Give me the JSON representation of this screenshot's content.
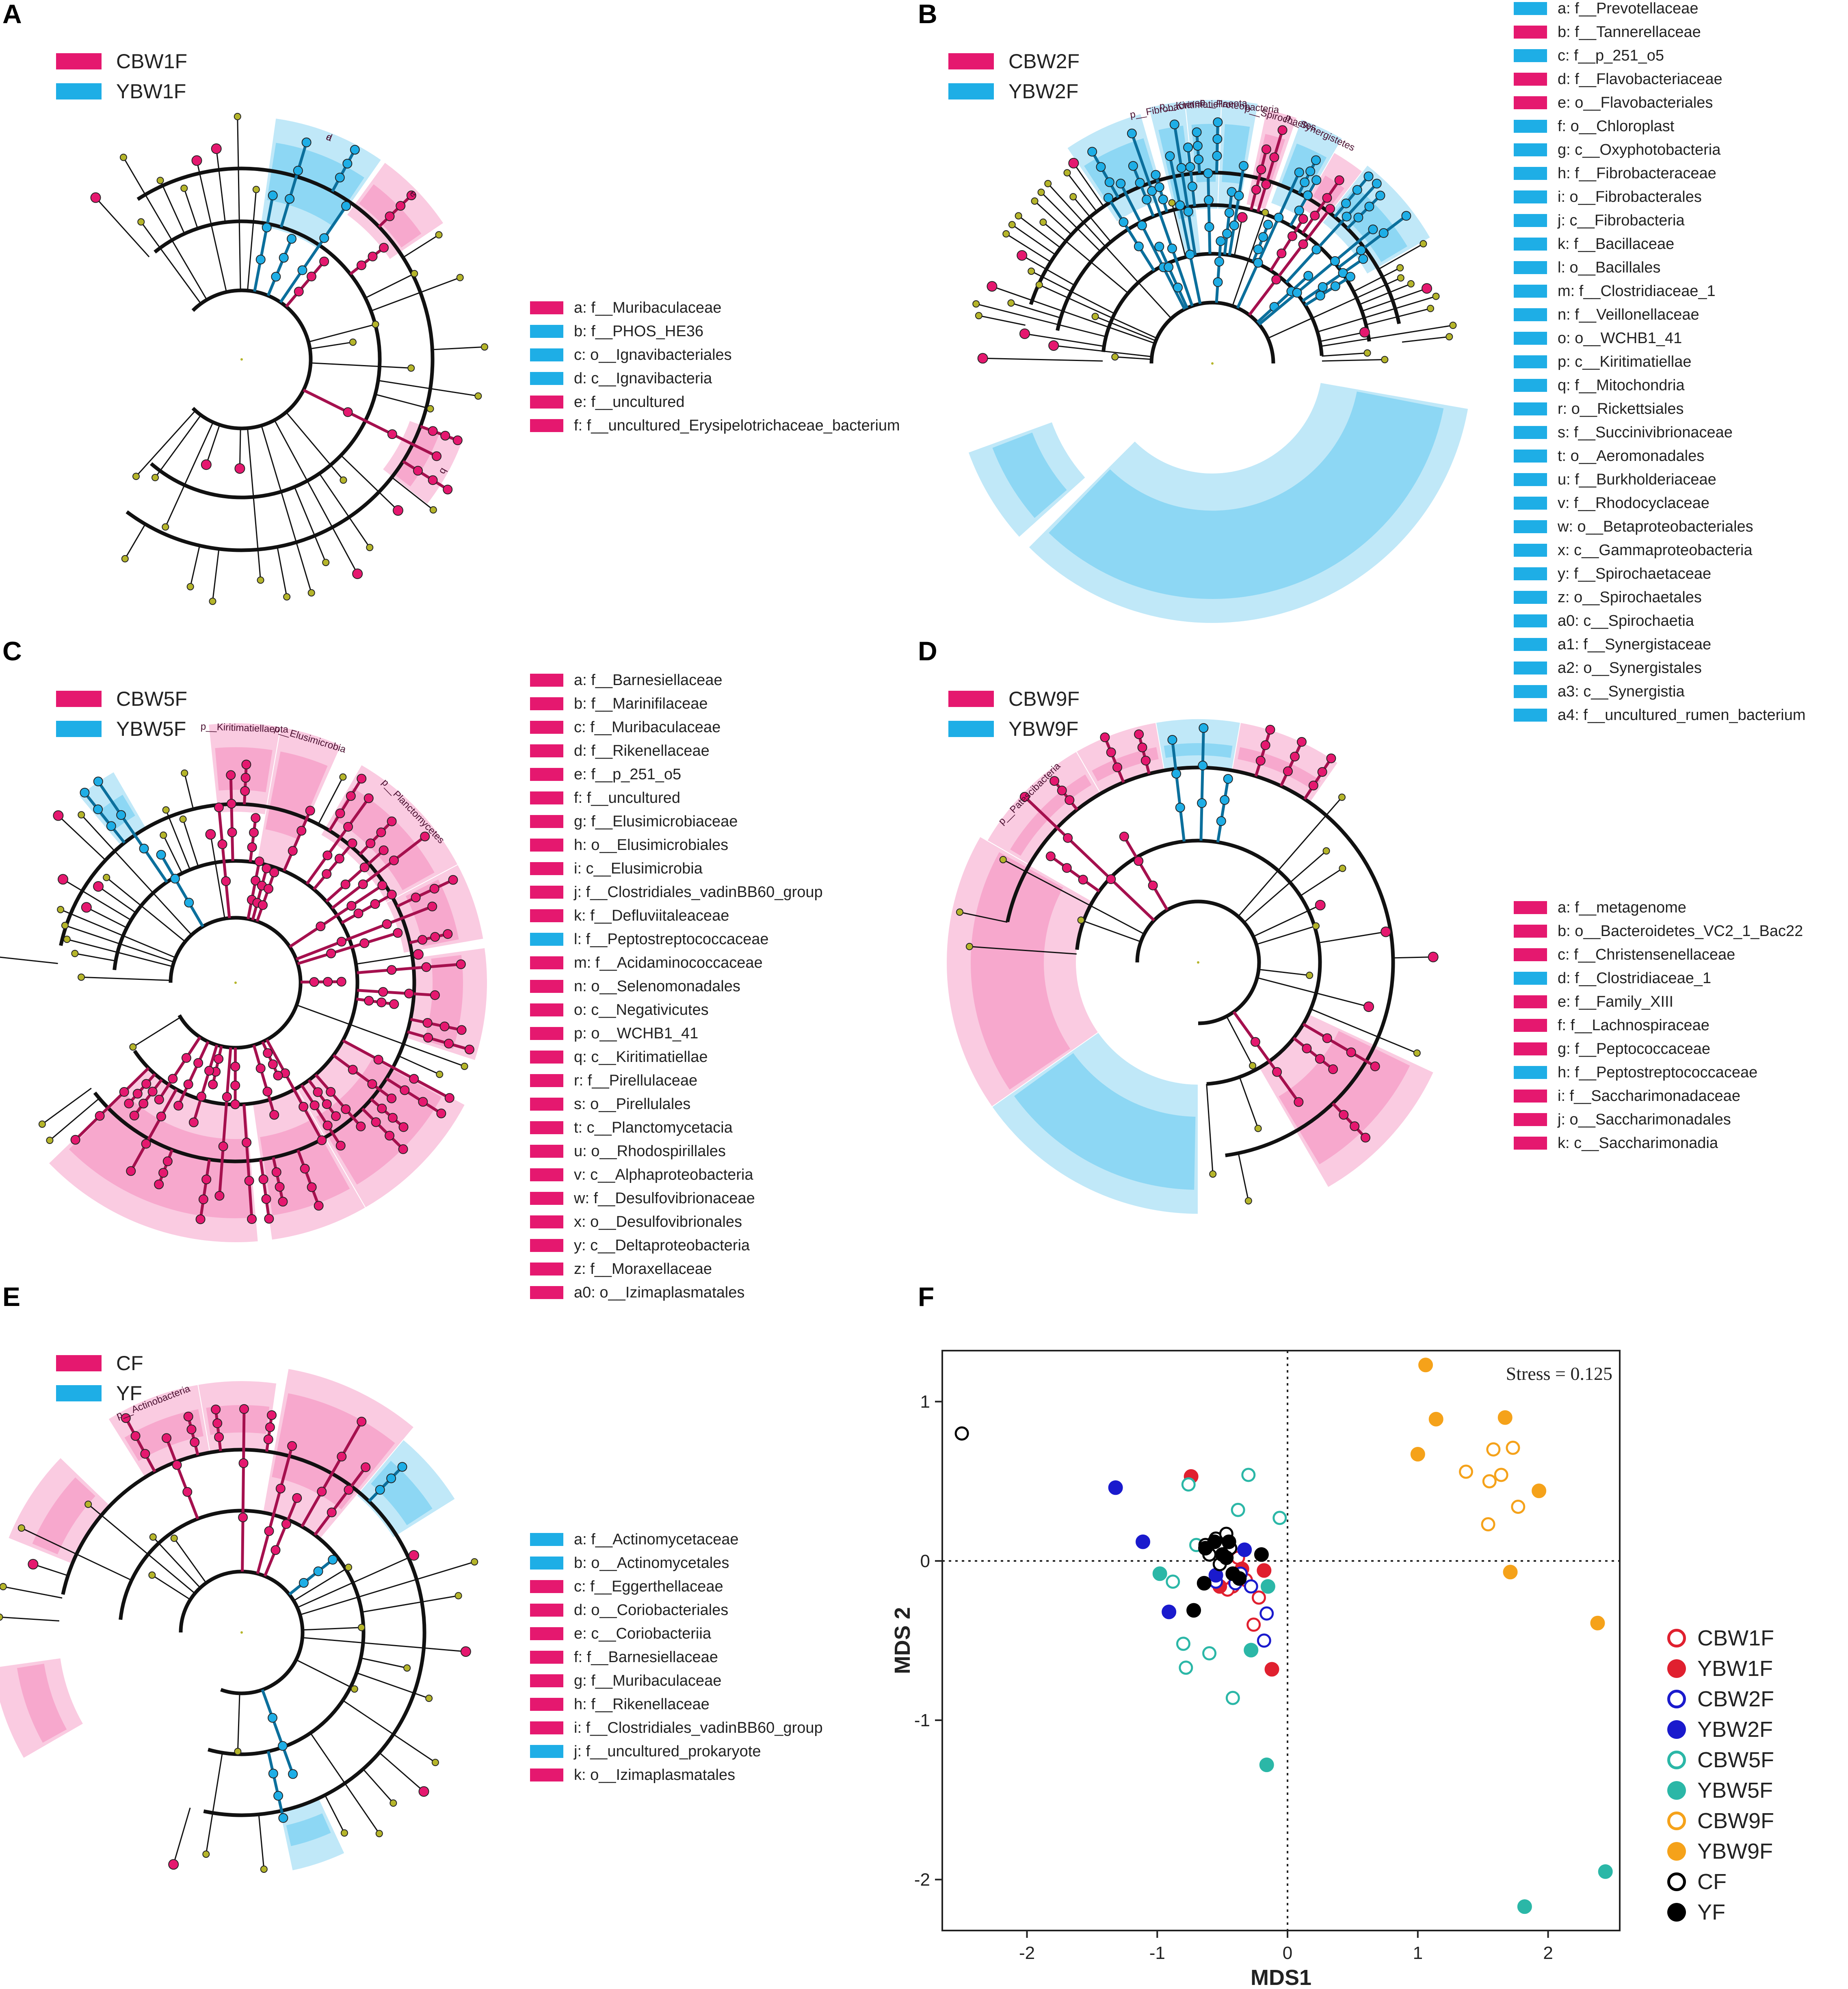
{
  "colors": {
    "pink": "#e5186f",
    "blue": "#1eaee6",
    "olive": "#b5b52a"
  },
  "panels": {
    "A": {
      "letter": "A",
      "groups": [
        {
          "name": "CBW1F",
          "color": "#e5186f"
        },
        {
          "name": "YBW1F",
          "color": "#1eaee6"
        }
      ],
      "taxa": [
        {
          "label": "a: f__Muribaculaceae",
          "color": "#e5186f"
        },
        {
          "label": "b: f__PHOS_HE36",
          "color": "#1eaee6"
        },
        {
          "label": "c: o__Ignavibacteriales",
          "color": "#1eaee6"
        },
        {
          "label": "d: c__Ignavibacteria",
          "color": "#1eaee6"
        },
        {
          "label": "e: f__uncultured",
          "color": "#e5186f"
        },
        {
          "label": "f: f__uncultured_Erysipelotrichaceae_bacterium",
          "color": "#e5186f"
        }
      ],
      "clade_tags": [
        "d",
        "c",
        "b",
        "a",
        "e"
      ]
    },
    "B": {
      "letter": "B",
      "groups": [
        {
          "name": "CBW2F",
          "color": "#e5186f"
        },
        {
          "name": "YBW2F",
          "color": "#1eaee6"
        }
      ],
      "taxa": [
        {
          "label": "a: f__Prevotellaceae",
          "color": "#1eaee6"
        },
        {
          "label": "b: f__Tannerellaceae",
          "color": "#e5186f"
        },
        {
          "label": "c: f__p_251_o5",
          "color": "#1eaee6"
        },
        {
          "label": "d: f__Flavobacteriaceae",
          "color": "#e5186f"
        },
        {
          "label": "e: o__Flavobacteriales",
          "color": "#e5186f"
        },
        {
          "label": "f: o__Chloroplast",
          "color": "#1eaee6"
        },
        {
          "label": "g: c__Oxyphotobacteria",
          "color": "#1eaee6"
        },
        {
          "label": "h: f__Fibrobacteraceae",
          "color": "#1eaee6"
        },
        {
          "label": "i: o__Fibrobacterales",
          "color": "#1eaee6"
        },
        {
          "label": "j: c__Fibrobacteria",
          "color": "#1eaee6"
        },
        {
          "label": "k: f__Bacillaceae",
          "color": "#1eaee6"
        },
        {
          "label": "l: o__Bacillales",
          "color": "#1eaee6"
        },
        {
          "label": "m: f__Clostridiaceae_1",
          "color": "#1eaee6"
        },
        {
          "label": "n: f__Veillonellaceae",
          "color": "#1eaee6"
        },
        {
          "label": "o: o__WCHB1_41",
          "color": "#1eaee6"
        },
        {
          "label": "p: c__Kiritimatiellae",
          "color": "#1eaee6"
        },
        {
          "label": "q: f__Mitochondria",
          "color": "#1eaee6"
        },
        {
          "label": "r: o__Rickettsiales",
          "color": "#1eaee6"
        },
        {
          "label": "s: f__Succinivibrionaceae",
          "color": "#1eaee6"
        },
        {
          "label": "t: o__Aeromonadales",
          "color": "#1eaee6"
        },
        {
          "label": "u: f__Burkholderiaceae",
          "color": "#1eaee6"
        },
        {
          "label": "v: f__Rhodocyclaceae",
          "color": "#1eaee6"
        },
        {
          "label": "w: o__Betaproteobacteriales",
          "color": "#1eaee6"
        },
        {
          "label": "x: c__Gammaproteobacteria",
          "color": "#1eaee6"
        },
        {
          "label": "y: f__Spirochaetaceae",
          "color": "#1eaee6"
        },
        {
          "label": "z: o__Spirochaetales",
          "color": "#1eaee6"
        },
        {
          "label": "a0: c__Spirochaetia",
          "color": "#1eaee6"
        },
        {
          "label": "a1: f__Synergistaceae",
          "color": "#1eaee6"
        },
        {
          "label": "a2: o__Synergistales",
          "color": "#1eaee6"
        },
        {
          "label": "a3: c__Synergistia",
          "color": "#1eaee6"
        },
        {
          "label": "a4: f__uncultured_rumen_bacterium",
          "color": "#1eaee6"
        }
      ],
      "clade_tags": [
        "p__Fibrobacteres",
        "p__Kiritimatiellaeota",
        "p__Proteobacteria",
        "p__Spirochaetes",
        "p__Synergistetes"
      ]
    },
    "C": {
      "letter": "C",
      "groups": [
        {
          "name": "CBW5F",
          "color": "#e5186f"
        },
        {
          "name": "YBW5F",
          "color": "#1eaee6"
        }
      ],
      "taxa": [
        {
          "label": "a: f__Barnesiellaceae",
          "color": "#e5186f"
        },
        {
          "label": "b: f__Marinifilaceae",
          "color": "#e5186f"
        },
        {
          "label": "c: f__Muribaculaceae",
          "color": "#e5186f"
        },
        {
          "label": "d: f__Rikenellaceae",
          "color": "#e5186f"
        },
        {
          "label": "e: f__p_251_o5",
          "color": "#e5186f"
        },
        {
          "label": "f: f__uncultured",
          "color": "#e5186f"
        },
        {
          "label": "g: f__Elusimicrobiaceae",
          "color": "#e5186f"
        },
        {
          "label": "h: o__Elusimicrobiales",
          "color": "#e5186f"
        },
        {
          "label": "i: c__Elusimicrobia",
          "color": "#e5186f"
        },
        {
          "label": "j: f__Clostridiales_vadinBB60_group",
          "color": "#e5186f"
        },
        {
          "label": "k: f__Defluviitaleaceae",
          "color": "#e5186f"
        },
        {
          "label": "l: f__Peptostreptococcaceae",
          "color": "#1eaee6"
        },
        {
          "label": "m: f__Acidaminococcaceae",
          "color": "#e5186f"
        },
        {
          "label": "n: o__Selenomonadales",
          "color": "#e5186f"
        },
        {
          "label": "o: c__Negativicutes",
          "color": "#e5186f"
        },
        {
          "label": "p: o__WCHB1_41",
          "color": "#e5186f"
        },
        {
          "label": "q: c__Kiritimatiellae",
          "color": "#e5186f"
        },
        {
          "label": "r: f__Pirellulaceae",
          "color": "#e5186f"
        },
        {
          "label": "s: o__Pirellulales",
          "color": "#e5186f"
        },
        {
          "label": "t: c__Planctomycetacia",
          "color": "#e5186f"
        },
        {
          "label": "u: o__Rhodospirillales",
          "color": "#e5186f"
        },
        {
          "label": "v: c__Alphaproteobacteria",
          "color": "#e5186f"
        },
        {
          "label": "w: f__Desulfovibrionaceae",
          "color": "#e5186f"
        },
        {
          "label": "x: o__Desulfovibrionales",
          "color": "#e5186f"
        },
        {
          "label": "y: c__Deltaproteobacteria",
          "color": "#e5186f"
        },
        {
          "label": "z: f__Moraxellaceae",
          "color": "#e5186f"
        },
        {
          "label": "a0: o__Izimaplasmatales",
          "color": "#e5186f"
        }
      ],
      "clade_tags": [
        "p__Elusimicrobia",
        "p__Kiritimatiellaeota",
        "p__Planctomycetes"
      ]
    },
    "D": {
      "letter": "D",
      "groups": [
        {
          "name": "CBW9F",
          "color": "#e5186f"
        },
        {
          "name": "YBW9F",
          "color": "#1eaee6"
        }
      ],
      "taxa": [
        {
          "label": "a: f__metagenome",
          "color": "#e5186f"
        },
        {
          "label": "b: o__Bacteroidetes_VC2_1_Bac22",
          "color": "#e5186f"
        },
        {
          "label": "c: f__Christensenellaceae",
          "color": "#e5186f"
        },
        {
          "label": "d: f__Clostridiaceae_1",
          "color": "#1eaee6"
        },
        {
          "label": "e: f__Family_XIII",
          "color": "#e5186f"
        },
        {
          "label": "f: f__Lachnospiraceae",
          "color": "#e5186f"
        },
        {
          "label": "g: f__Peptococcaceae",
          "color": "#e5186f"
        },
        {
          "label": "h: f__Peptostreptococcaceae",
          "color": "#1eaee6"
        },
        {
          "label": "i: f__Saccharimonadaceae",
          "color": "#e5186f"
        },
        {
          "label": "j: o__Saccharimonadales",
          "color": "#e5186f"
        },
        {
          "label": "k: c__Saccharimonadia",
          "color": "#e5186f"
        }
      ],
      "clade_tags": [
        "p__Patescibacteria"
      ]
    },
    "E": {
      "letter": "E",
      "groups": [
        {
          "name": "CF",
          "color": "#e5186f"
        },
        {
          "name": "YF",
          "color": "#1eaee6"
        }
      ],
      "taxa": [
        {
          "label": "a: f__Actinomycetaceae",
          "color": "#1eaee6"
        },
        {
          "label": "b: o__Actinomycetales",
          "color": "#1eaee6"
        },
        {
          "label": "c: f__Eggerthellaceae",
          "color": "#e5186f"
        },
        {
          "label": "d: o__Coriobacteriales",
          "color": "#e5186f"
        },
        {
          "label": "e: c__Coriobacteriia",
          "color": "#e5186f"
        },
        {
          "label": "f: f__Barnesiellaceae",
          "color": "#e5186f"
        },
        {
          "label": "g: f__Muribaculaceae",
          "color": "#e5186f"
        },
        {
          "label": "h: f__Rikenellaceae",
          "color": "#e5186f"
        },
        {
          "label": "i: f__Clostridiales_vadinBB60_group",
          "color": "#e5186f"
        },
        {
          "label": "j: f__uncultured_prokaryote",
          "color": "#1eaee6"
        },
        {
          "label": "k: o__Izimaplasmatales",
          "color": "#e5186f"
        }
      ],
      "clade_tags": [
        "p__Actinobacteria"
      ]
    },
    "F": {
      "letter": "F"
    }
  },
  "chart_data": {
    "type": "scatter",
    "title": "",
    "xlabel": "MDS1",
    "ylabel": "MDS 2",
    "xlim": [
      -2.65,
      2.55
    ],
    "ylim": [
      -2.32,
      1.32
    ],
    "xticks": [
      -2,
      -1,
      0,
      1,
      2
    ],
    "yticks": [
      -2,
      -1,
      0,
      1
    ],
    "annotation": "Stress = 0.125",
    "series": [
      {
        "name": "CBW1F",
        "color": "#e0202f",
        "filled": false,
        "points": [
          [
            -0.42,
            -0.16
          ],
          [
            -0.26,
            -0.4
          ],
          [
            -0.22,
            -0.23
          ],
          [
            -0.32,
            -0.12
          ],
          [
            -0.46,
            -0.18
          ],
          [
            -0.38,
            0.02
          ]
        ]
      },
      {
        "name": "YBW1F",
        "color": "#e0202f",
        "filled": true,
        "points": [
          [
            -0.74,
            0.53
          ],
          [
            -0.12,
            -0.68
          ],
          [
            -0.18,
            -0.06
          ],
          [
            -0.52,
            -0.16
          ],
          [
            -0.35,
            -0.05
          ]
        ]
      },
      {
        "name": "CBW2F",
        "color": "#1a1acd",
        "filled": false,
        "points": [
          [
            -0.55,
            -0.13
          ],
          [
            -0.4,
            -0.14
          ],
          [
            -0.28,
            -0.16
          ],
          [
            -0.16,
            -0.33
          ],
          [
            -0.18,
            -0.5
          ],
          [
            -0.36,
            -0.08
          ]
        ]
      },
      {
        "name": "YBW2F",
        "color": "#1a1acd",
        "filled": true,
        "points": [
          [
            -1.32,
            0.46
          ],
          [
            -1.11,
            0.12
          ],
          [
            -0.55,
            -0.09
          ],
          [
            -0.91,
            -0.32
          ],
          [
            -0.33,
            0.07
          ]
        ]
      },
      {
        "name": "CBW5F",
        "color": "#2bb7a7",
        "filled": false,
        "points": [
          [
            -0.76,
            0.48
          ],
          [
            -0.3,
            0.54
          ],
          [
            -0.38,
            0.32
          ],
          [
            -0.7,
            0.1
          ],
          [
            -0.06,
            0.27
          ],
          [
            -0.88,
            -0.13
          ],
          [
            -0.8,
            -0.52
          ],
          [
            -0.78,
            -0.67
          ],
          [
            -0.42,
            -0.86
          ],
          [
            -0.6,
            -0.58
          ]
        ]
      },
      {
        "name": "YBW5F",
        "color": "#2bb7a7",
        "filled": true,
        "points": [
          [
            -0.98,
            -0.08
          ],
          [
            -0.15,
            -0.16
          ],
          [
            -0.28,
            -0.56
          ],
          [
            -0.16,
            -1.28
          ],
          [
            1.82,
            -2.17
          ],
          [
            2.44,
            -1.95
          ]
        ]
      },
      {
        "name": "CBW9F",
        "color": "#f5a21a",
        "filled": false,
        "points": [
          [
            1.37,
            0.56
          ],
          [
            1.55,
            0.5
          ],
          [
            1.58,
            0.7
          ],
          [
            1.73,
            0.71
          ],
          [
            1.64,
            0.54
          ],
          [
            1.77,
            0.34
          ],
          [
            1.54,
            0.23
          ]
        ]
      },
      {
        "name": "YBW9F",
        "color": "#f5a21a",
        "filled": true,
        "points": [
          [
            1.06,
            1.23
          ],
          [
            1.14,
            0.89
          ],
          [
            1.0,
            0.67
          ],
          [
            1.67,
            0.9
          ],
          [
            1.93,
            0.44
          ],
          [
            1.71,
            -0.07
          ],
          [
            2.38,
            -0.39
          ]
        ]
      },
      {
        "name": "CF",
        "color": "#000000",
        "filled": false,
        "points": [
          [
            -2.5,
            0.8
          ],
          [
            -0.63,
            0.1
          ],
          [
            -0.55,
            0.14
          ],
          [
            -0.47,
            0.17
          ],
          [
            -0.44,
            0.08
          ],
          [
            -0.6,
            0.04
          ],
          [
            -0.52,
            -0.02
          ]
        ]
      },
      {
        "name": "YF",
        "color": "#000000",
        "filled": true,
        "points": [
          [
            -0.72,
            -0.31
          ],
          [
            -0.63,
            0.08
          ],
          [
            -0.56,
            0.12
          ],
          [
            -0.47,
            0.02
          ],
          [
            -0.45,
            0.12
          ],
          [
            -0.64,
            -0.14
          ],
          [
            -0.42,
            -0.08
          ],
          [
            -0.2,
            0.04
          ],
          [
            -0.37,
            -0.11
          ],
          [
            -0.5,
            0.04
          ]
        ]
      }
    ]
  }
}
